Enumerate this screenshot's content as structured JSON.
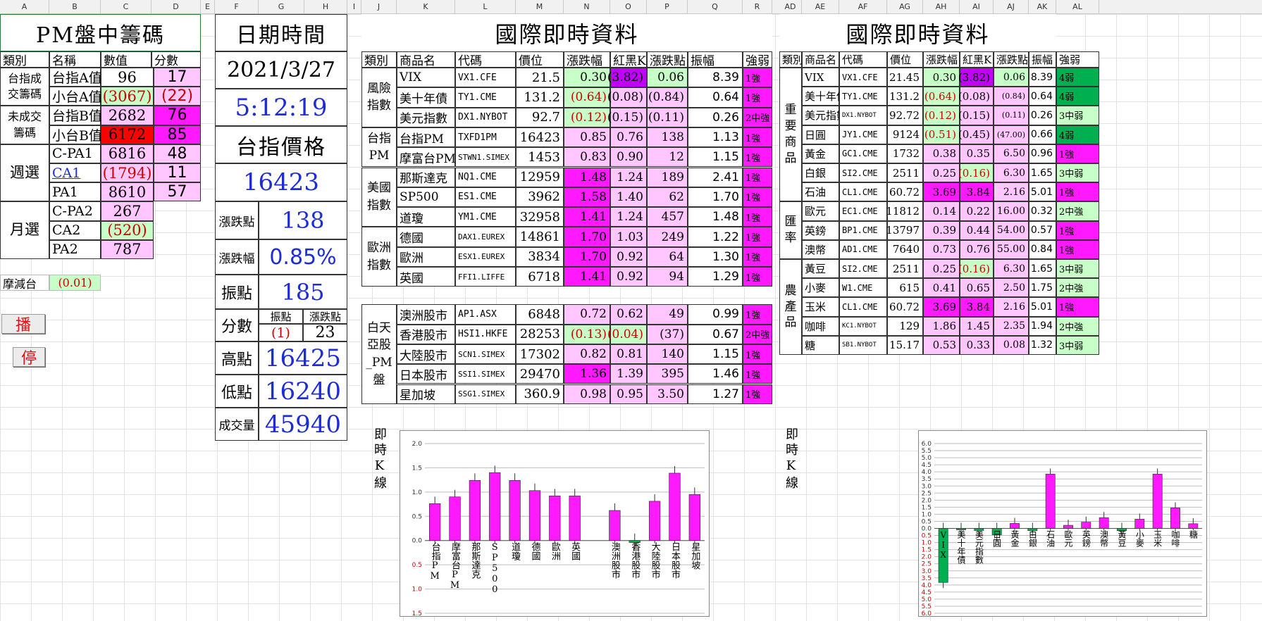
{
  "columns": [
    "A",
    "B",
    "C",
    "D",
    "E",
    "F",
    "G",
    "H",
    "I",
    "J",
    "K",
    "L",
    "M",
    "N",
    "O",
    "P",
    "Q",
    "R",
    "AD",
    "AE",
    "AF",
    "AG",
    "AH",
    "AI",
    "AJ",
    "AK",
    "AL"
  ],
  "chips": {
    "title": "PM盤中籌碼",
    "headers": [
      "類別",
      "名稱",
      "數值",
      "分數"
    ],
    "groups": [
      "台指成交籌碼",
      "未成交籌碼",
      "週選",
      "月選"
    ],
    "rows": [
      {
        "name": "台指A值",
        "value": "96",
        "score": "17"
      },
      {
        "name": "小台A值",
        "value": "(3067)",
        "score": "(22)"
      },
      {
        "name": "台指B值",
        "value": "2682",
        "score": "76"
      },
      {
        "name": "小台B值",
        "value": "6172",
        "score": "85"
      },
      {
        "name": "C-PA1",
        "value": "6816",
        "score": "48"
      },
      {
        "name": "CA1",
        "value": "(1794)",
        "score": "11"
      },
      {
        "name": "PA1",
        "value": "8610",
        "score": "57"
      },
      {
        "name": "C-PA2",
        "value": "267",
        "score": ""
      },
      {
        "name": "CA2",
        "value": "(520)",
        "score": ""
      },
      {
        "name": "PA2",
        "value": "787",
        "score": ""
      }
    ],
    "decay_label": "摩減台",
    "decay_value": "(0.01)",
    "play_button": "播",
    "stop_button": "停"
  },
  "datetime": {
    "title": "日期時間",
    "date": "2021/3/27",
    "time": "5:12:19",
    "price_title": "台指價格",
    "price": "16423",
    "change_label": "漲跌點",
    "change": "138",
    "pct_label": "漲跌幅",
    "pct": "0.85%",
    "amp_label": "振點",
    "amp": "185",
    "score_label": "分數",
    "score_sub1": "振點",
    "score_sub2": "漲跌點",
    "score_v1": "(1)",
    "score_v2": "23",
    "high_label": "高點",
    "high": "16425",
    "low_label": "低點",
    "low": "16240",
    "vol_label": "成交量",
    "vol": "45940"
  },
  "intl": {
    "title": "國際即時資料",
    "headers": [
      "類別",
      "商品名",
      "代碼",
      "價位",
      "漲跌幅",
      "紅黑K",
      "漲跌點",
      "振幅",
      "強弱"
    ],
    "groups": [
      "風險指數",
      "台指PM",
      "美國指數",
      "歐洲指數",
      "白天亞股_PM盤"
    ],
    "rows": [
      {
        "name": "VIX",
        "code": "VX1.CFE",
        "price": "21.5",
        "pct": "0.30",
        "k": "(3.82)",
        "pts": "0.06",
        "amp": "8.39",
        "str": "1強"
      },
      {
        "name": "美十年債",
        "code": "TY1.CME",
        "price": "131.2",
        "pct": "(0.64)",
        "k": "(0.08)",
        "pts": "(0.84)",
        "amp": "0.64",
        "str": "1強"
      },
      {
        "name": "美元指數",
        "code": "DX1.NYBOT",
        "price": "92.7",
        "pct": "(0.12)",
        "k": "(0.15)",
        "pts": "(0.11)",
        "amp": "0.26",
        "str": "2中強"
      },
      {
        "name": "台指PM",
        "code": "TXFD1PM",
        "price": "16423",
        "pct": "0.85",
        "k": "0.76",
        "pts": "138",
        "amp": "1.13",
        "str": "1強"
      },
      {
        "name": "摩富台PM",
        "code": "STWN1.SIMEX",
        "price": "1453",
        "pct": "0.83",
        "k": "0.90",
        "pts": "12",
        "amp": "1.15",
        "str": "1強"
      },
      {
        "name": "那斯達克",
        "code": "NQ1.CME",
        "price": "12959",
        "pct": "1.48",
        "k": "1.24",
        "pts": "189",
        "amp": "2.41",
        "str": "1強"
      },
      {
        "name": "SP500",
        "code": "ES1.CME",
        "price": "3962",
        "pct": "1.58",
        "k": "1.40",
        "pts": "62",
        "amp": "1.70",
        "str": "1強"
      },
      {
        "name": "道瓊",
        "code": "YM1.CME",
        "price": "32958",
        "pct": "1.41",
        "k": "1.24",
        "pts": "457",
        "amp": "1.48",
        "str": "1強"
      },
      {
        "name": "德國",
        "code": "DAX1.EUREX",
        "price": "14861",
        "pct": "1.70",
        "k": "1.03",
        "pts": "249",
        "amp": "1.22",
        "str": "1強"
      },
      {
        "name": "歐洲",
        "code": "ESX1.EUREX",
        "price": "3834",
        "pct": "1.70",
        "k": "0.92",
        "pts": "64",
        "amp": "1.30",
        "str": "1強"
      },
      {
        "name": "英國",
        "code": "FFI1.LIFFE",
        "price": "6718",
        "pct": "1.41",
        "k": "0.92",
        "pts": "94",
        "amp": "1.29",
        "str": "1強"
      },
      {
        "name": "澳洲股市",
        "code": "AP1.ASX",
        "price": "6848",
        "pct": "0.72",
        "k": "0.62",
        "pts": "49",
        "amp": "0.99",
        "str": "1強"
      },
      {
        "name": "香港股市",
        "code": "HSI1.HKFE",
        "price": "28253",
        "pct": "(0.13)",
        "k": "(0.04)",
        "pts": "(37)",
        "amp": "0.67",
        "str": "2中強"
      },
      {
        "name": "大陸股市",
        "code": "SCN1.SIMEX",
        "price": "17302",
        "pct": "0.82",
        "k": "0.81",
        "pts": "140",
        "amp": "1.15",
        "str": "1強"
      },
      {
        "name": "日本股市",
        "code": "SSI1.SIMEX",
        "price": "29470",
        "pct": "1.36",
        "k": "1.39",
        "pts": "395",
        "amp": "1.46",
        "str": "1強"
      },
      {
        "name": "星加坡",
        "code": "SSG1.SIMEX",
        "price": "360.9",
        "pct": "0.98",
        "k": "0.95",
        "pts": "3.50",
        "amp": "1.27",
        "str": "1強"
      }
    ],
    "chart_label": "即時K線"
  },
  "intl2": {
    "title": "國際即時資料",
    "headers": [
      "類別",
      "商品名",
      "代碼",
      "價位",
      "漲跌幅",
      "紅黑K",
      "漲跌點",
      "振幅",
      "強弱"
    ],
    "groups": [
      "重要商品",
      "匯率",
      "農產品"
    ],
    "rows": [
      {
        "name": "VIX",
        "code": "VX1.CFE",
        "price": "21.45",
        "pct": "0.30",
        "k": "(3.82)",
        "pts": "0.06",
        "amp": "8.39",
        "str": "4弱"
      },
      {
        "name": "美十年債",
        "code": "TY1.CME",
        "price": "131.2",
        "pct": "(0.64)",
        "k": "(0.08)",
        "pts": "(0.84)",
        "amp": "0.64",
        "str": "4弱"
      },
      {
        "name": "美元指數",
        "code": "DX1.NYBOT",
        "price": "92.72",
        "pct": "(0.12)",
        "k": "(0.15)",
        "pts": "(0.11)",
        "amp": "0.26",
        "str": "3中弱"
      },
      {
        "name": "日圓",
        "code": "JY1.CME",
        "price": "9124",
        "pct": "(0.51)",
        "k": "(0.45)",
        "pts": "(47.00)",
        "amp": "0.66",
        "str": "4弱"
      },
      {
        "name": "黃金",
        "code": "GC1.CME",
        "price": "1732",
        "pct": "0.38",
        "k": "0.35",
        "pts": "6.50",
        "amp": "0.96",
        "str": "1強"
      },
      {
        "name": "白銀",
        "code": "SI2.CME",
        "price": "2511",
        "pct": "0.25",
        "k": "(0.16)",
        "pts": "6.30",
        "amp": "1.65",
        "str": "3中弱"
      },
      {
        "name": "石油",
        "code": "CL1.CME",
        "price": "60.72",
        "pct": "3.69",
        "k": "3.84",
        "pts": "2.16",
        "amp": "5.01",
        "str": "1強"
      },
      {
        "name": "歐元",
        "code": "EC1.CME",
        "price": "11812",
        "pct": "0.14",
        "k": "0.22",
        "pts": "16.00",
        "amp": "0.32",
        "str": "2中強"
      },
      {
        "name": "英鎊",
        "code": "BP1.CME",
        "price": "13797",
        "pct": "0.39",
        "k": "0.44",
        "pts": "54.00",
        "amp": "0.57",
        "str": "1強"
      },
      {
        "name": "澳幣",
        "code": "AD1.CME",
        "price": "7640",
        "pct": "0.73",
        "k": "0.76",
        "pts": "55.00",
        "amp": "0.84",
        "str": "1強"
      },
      {
        "name": "黃豆",
        "code": "SI2.CME",
        "price": "2511",
        "pct": "0.25",
        "k": "(0.16)",
        "pts": "6.30",
        "amp": "1.65",
        "str": "3中弱"
      },
      {
        "name": "小麥",
        "code": "W1.CME",
        "price": "615",
        "pct": "0.41",
        "k": "0.65",
        "pts": "2.50",
        "amp": "1.75",
        "str": "2中強"
      },
      {
        "name": "玉米",
        "code": "CL1.CME",
        "price": "60.72",
        "pct": "3.69",
        "k": "3.84",
        "pts": "2.16",
        "amp": "5.01",
        "str": "1強"
      },
      {
        "name": "咖啡",
        "code": "KC1.NYBOT",
        "price": "129",
        "pct": "1.86",
        "k": "1.45",
        "pts": "2.35",
        "amp": "1.94",
        "str": "2中強"
      },
      {
        "name": "糖",
        "code": "SB1.NYBOT",
        "price": "15.17",
        "pct": "0.53",
        "k": "0.33",
        "pts": "0.08",
        "amp": "1.32",
        "str": "3中弱"
      }
    ],
    "chart_label": "即時K線"
  },
  "chart_data": [
    {
      "type": "bar",
      "categories": [
        "台指PM",
        "摩富台PM",
        "那斯達克",
        "SP500",
        "道瓊",
        "德國",
        "歐洲",
        "英國",
        "",
        "澳洲股市",
        "香港股市",
        "大陸股市",
        "日本股市",
        "星加坡"
      ],
      "values": [
        0.76,
        0.9,
        1.24,
        1.4,
        1.24,
        1.03,
        0.92,
        0.92,
        null,
        0.62,
        -0.04,
        0.81,
        1.39,
        0.95
      ],
      "ylim": [
        -1.5,
        2.0
      ],
      "ticks_pos": [
        "2.0",
        "1.5",
        "1.0",
        "0.5",
        "0.0"
      ],
      "ticks_neg": [
        "0.5",
        "1.0",
        "1.5"
      ]
    },
    {
      "type": "bar",
      "categories": [
        "VIX",
        "美十年債",
        "美元指數",
        "日圓",
        "黃金",
        "白銀",
        "石油",
        "歐元",
        "英鎊",
        "澳幣",
        "黃豆",
        "小麥",
        "玉米",
        "咖啡",
        "糖"
      ],
      "values": [
        -3.82,
        -0.08,
        -0.15,
        -0.45,
        0.35,
        -0.16,
        3.84,
        0.22,
        0.44,
        0.76,
        -0.16,
        0.65,
        3.84,
        1.45,
        0.33
      ],
      "ylim": [
        -6.0,
        6.0
      ],
      "ticks_pos": [
        "6.0",
        "5.5",
        "5.0",
        "4.5",
        "4.0",
        "3.5",
        "3.0",
        "2.5",
        "2.0",
        "1.5",
        "1.0",
        "0.5",
        "0.0"
      ],
      "ticks_neg": [
        "0.5",
        "1.0",
        "1.5",
        "2.0",
        "2.5",
        "3.0",
        "3.5",
        "4.0",
        "4.5",
        "5.0",
        "5.5",
        "6.0"
      ]
    }
  ]
}
